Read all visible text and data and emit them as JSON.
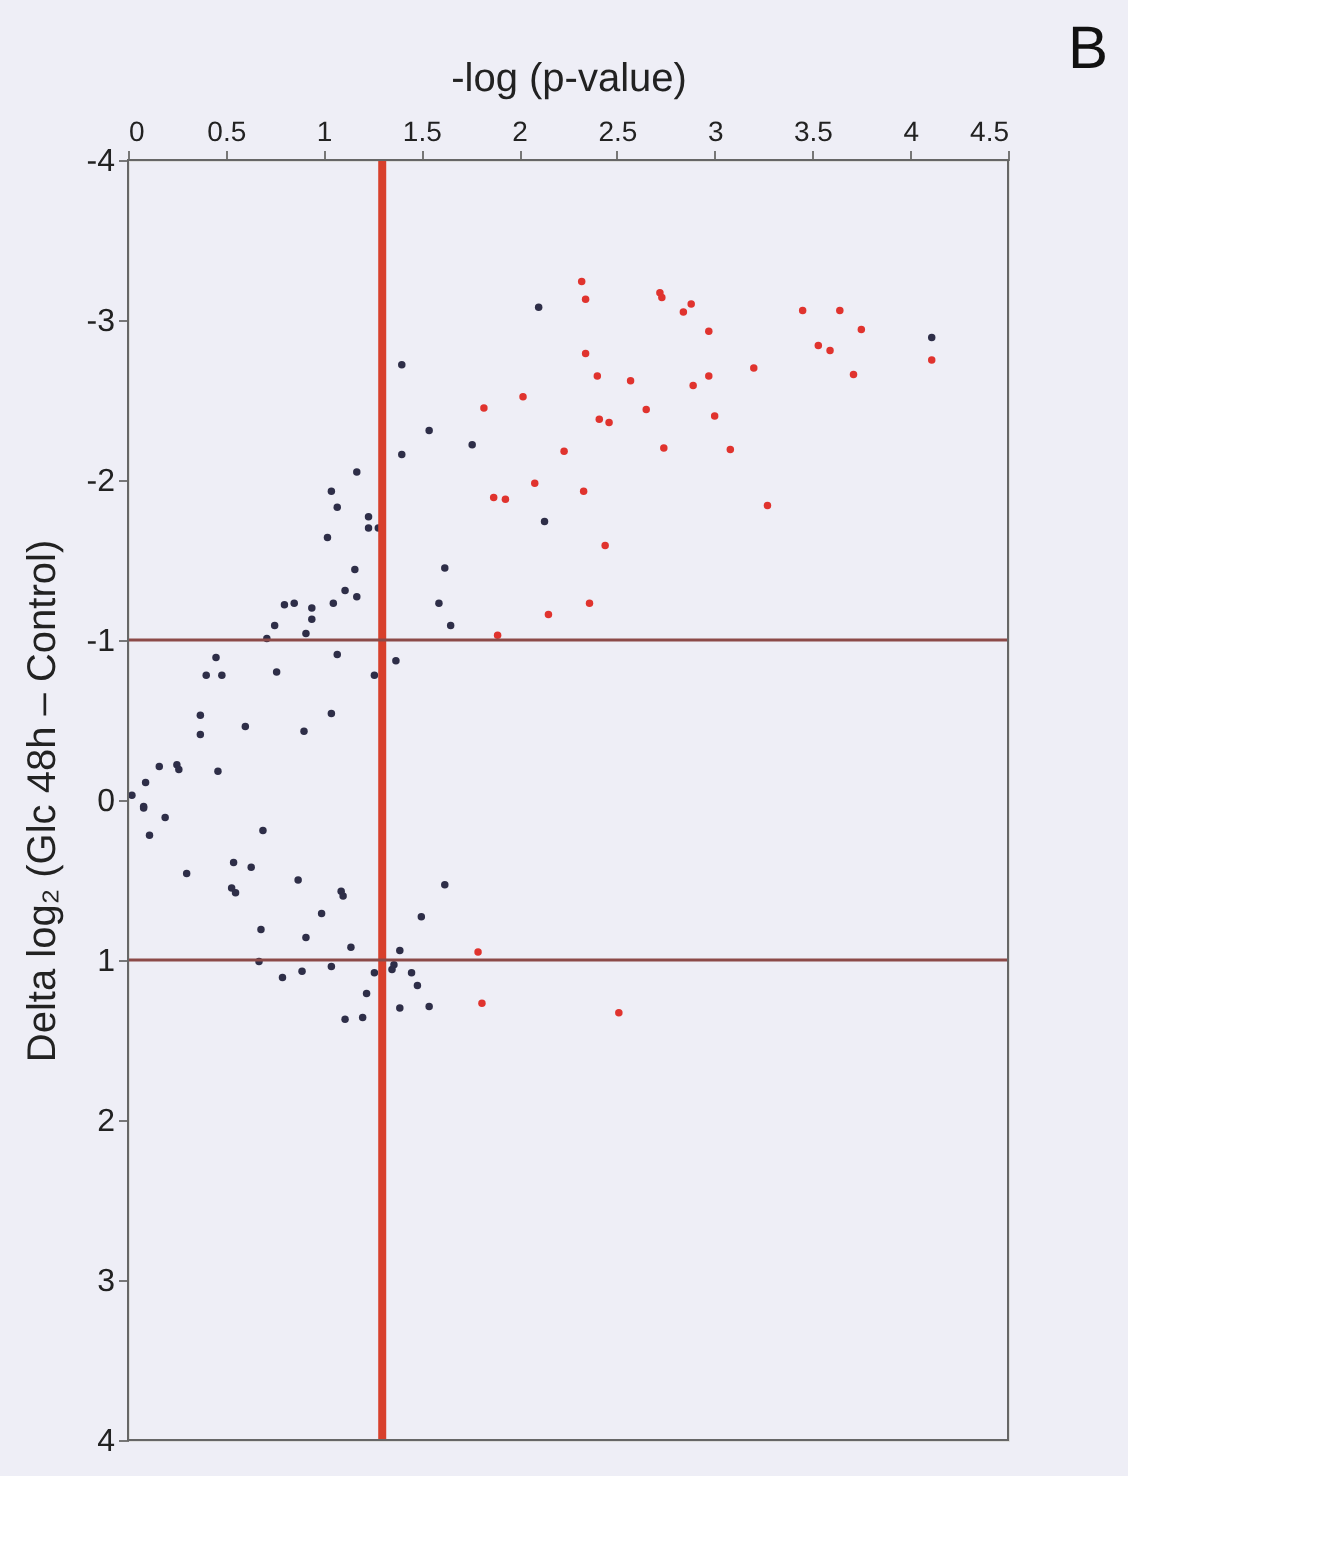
{
  "chart_data": {
    "type": "scatter",
    "xlabel": "-log (p-value)",
    "ylabel": "Delta log₂ (Glc 48h – Control)",
    "annotations": [
      "B"
    ],
    "xlim": [
      0,
      4.5
    ],
    "xticks": [
      0,
      0.5,
      1,
      1.5,
      2,
      2.5,
      3,
      3.5,
      4,
      4.5
    ],
    "ylim": [
      4,
      -4
    ],
    "yticks": [
      -4,
      -3,
      -2,
      -1,
      0,
      1,
      2,
      3,
      4
    ],
    "grid": false,
    "legend": false,
    "marker": "circle",
    "ref_lines": [
      {
        "axis": "x",
        "value": 1.3,
        "color": "#d8402c"
      },
      {
        "axis": "y",
        "value": -1,
        "color": "#8c4a48"
      },
      {
        "axis": "y",
        "value": 1,
        "color": "#8c4a48"
      }
    ],
    "series": [
      {
        "color": "#e0332e",
        "x": [
          2.32,
          2.72,
          2.73,
          2.84,
          2.88,
          3.45,
          3.64,
          3.75,
          2.97,
          2.34,
          2.34,
          3.53,
          3.59,
          3.71,
          4.11,
          3.2,
          2.4,
          2.57,
          2.89,
          2.97,
          1.82,
          2.02,
          2.65,
          2.41,
          2.46,
          3.0,
          2.74,
          3.08,
          2.23,
          2.08,
          1.87,
          1.93,
          2.33,
          3.27,
          2.44,
          2.15,
          2.36,
          1.89,
          1.79,
          1.81,
          2.51
        ],
        "values": [
          -3.24,
          -3.17,
          -3.14,
          -3.05,
          -3.1,
          -3.06,
          -3.06,
          -2.94,
          -2.93,
          -3.13,
          -2.79,
          -2.84,
          -2.81,
          -2.66,
          -2.75,
          -2.7,
          -2.65,
          -2.62,
          -2.59,
          -2.65,
          -2.45,
          -2.52,
          -2.44,
          -2.38,
          -2.36,
          -2.4,
          -2.2,
          -2.19,
          -2.18,
          -1.98,
          -1.89,
          -1.88,
          -1.93,
          -1.84,
          -1.59,
          -1.16,
          -1.23,
          -1.03,
          0.95,
          1.27,
          1.33
        ]
      },
      {
        "color": "#2e2e48",
        "x": [
          2.1,
          4.11,
          1.4,
          1.54,
          1.76,
          1.4,
          1.17,
          1.04,
          1.07,
          1.02,
          1.23,
          1.23,
          1.28,
          2.13,
          1.16,
          1.11,
          1.17,
          1.05,
          1.62,
          1.59,
          1.65,
          0.8,
          0.85,
          0.94,
          0.94,
          0.75,
          0.91,
          0.71,
          1.07,
          0.76,
          0.45,
          0.4,
          0.48,
          1.26,
          1.37,
          0.37,
          0.37,
          0.6,
          0.9,
          1.04,
          0.16,
          0.25,
          0.26,
          0.09,
          0.46,
          0.02,
          0.08,
          0.08,
          0.19,
          0.11,
          0.69,
          0.3,
          0.54,
          0.63,
          0.53,
          0.55,
          0.87,
          1.09,
          1.1,
          0.99,
          0.68,
          0.91,
          1.14,
          1.62,
          1.5,
          1.39,
          0.67,
          1.04,
          0.79,
          0.89,
          1.26,
          1.35,
          1.36,
          1.45,
          1.48,
          1.22,
          1.39,
          1.54,
          1.11,
          1.2
        ],
        "values": [
          -3.08,
          -2.89,
          -2.72,
          -2.31,
          -2.22,
          -2.16,
          -2.05,
          -1.93,
          -1.83,
          -1.64,
          -1.77,
          -1.7,
          -1.7,
          -1.74,
          -1.44,
          -1.31,
          -1.27,
          -1.23,
          -1.45,
          -1.23,
          -1.09,
          -1.22,
          -1.23,
          -1.2,
          -1.13,
          -1.09,
          -1.04,
          -1.01,
          -0.91,
          -0.8,
          -0.89,
          -0.78,
          -0.78,
          -0.78,
          -0.87,
          -0.53,
          -0.41,
          -0.46,
          -0.43,
          -0.54,
          -0.21,
          -0.22,
          -0.19,
          -0.11,
          -0.18,
          -0.03,
          0.04,
          0.05,
          0.11,
          0.22,
          0.19,
          0.46,
          0.39,
          0.42,
          0.55,
          0.58,
          0.5,
          0.57,
          0.6,
          0.71,
          0.81,
          0.86,
          0.92,
          0.53,
          0.73,
          0.94,
          1.01,
          1.04,
          1.11,
          1.07,
          1.08,
          1.06,
          1.03,
          1.08,
          1.16,
          1.21,
          1.3,
          1.29,
          1.37,
          1.36
        ]
      }
    ]
  }
}
